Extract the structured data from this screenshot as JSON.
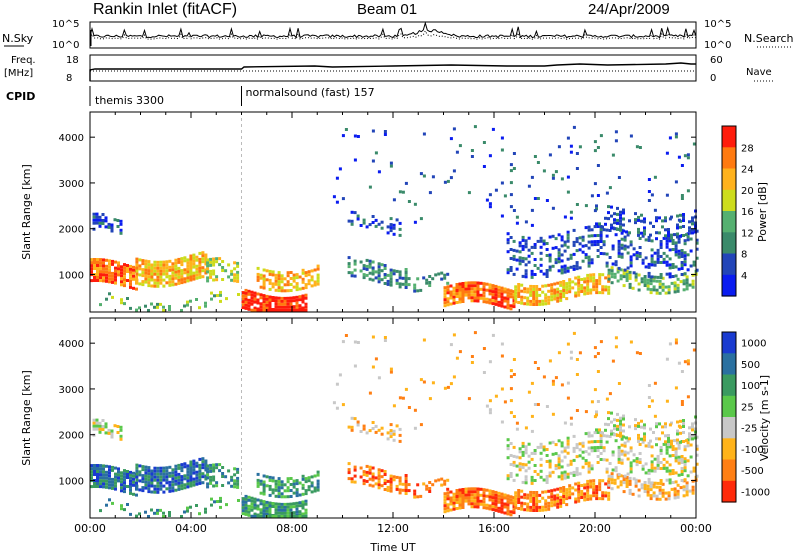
{
  "header": {
    "station": "Rankin Inlet (fitACF)",
    "beam": "Beam 01",
    "date": "24/Apr/2009"
  },
  "top_panel": {
    "left_label": "N.Sky",
    "right_label": "N.Search",
    "left_ticks": [
      "10^5",
      "10^0"
    ],
    "right_ticks": [
      "10^5",
      "10^0"
    ]
  },
  "freq_panel": {
    "left_label_1": "Freq.",
    "left_label_2": "[MHz]",
    "right_label": "Nave",
    "left_ticks": [
      "18",
      "8"
    ],
    "right_ticks": [
      "60",
      "0"
    ]
  },
  "cpid_panel": {
    "label": "CPID",
    "programs": [
      {
        "name": "themis 3300",
        "start_hour": 0
      },
      {
        "name": "normalsound (fast) 157",
        "start_hour": 6
      }
    ]
  },
  "chart_data": [
    {
      "type": "heatmap",
      "name": "power",
      "ylabel": "Slant Range [km]",
      "xlabel": "",
      "xlim_hours": [
        0,
        24
      ],
      "ylim": [
        180,
        4550
      ],
      "yticks": [
        1000,
        2000,
        3000,
        4000
      ],
      "colorbar": {
        "label": "Power [dB]",
        "ticks": [
          "4",
          "8",
          "12",
          "16",
          "20",
          "24",
          "28"
        ],
        "colors": [
          "#0a1cf0",
          "#2245b8",
          "#3a8a6a",
          "#55b070",
          "#cddc1c",
          "#ffb21c",
          "#ff7a10",
          "#ff1c0c"
        ]
      }
    },
    {
      "type": "heatmap",
      "name": "velocity",
      "ylabel": "Slant Range [km]",
      "xlabel": "Time UT",
      "xlim_hours": [
        0,
        24
      ],
      "ylim": [
        180,
        4550
      ],
      "yticks": [
        1000,
        2000,
        3000,
        4000
      ],
      "xticks": [
        "00:00",
        "04:00",
        "08:00",
        "12:00",
        "16:00",
        "20:00",
        "00:00"
      ],
      "colorbar": {
        "label": "Velocity [m s-1]",
        "ticks": [
          "1000",
          "500",
          "100",
          "25",
          "-25",
          "-100",
          "-500",
          "-1000"
        ],
        "colors": [
          "#1a3bd0",
          "#2a70a0",
          "#3a9a60",
          "#5ac84a",
          "#c8c8c8",
          "#ffb31a",
          "#ff7f14",
          "#ff2a0a"
        ]
      }
    }
  ]
}
